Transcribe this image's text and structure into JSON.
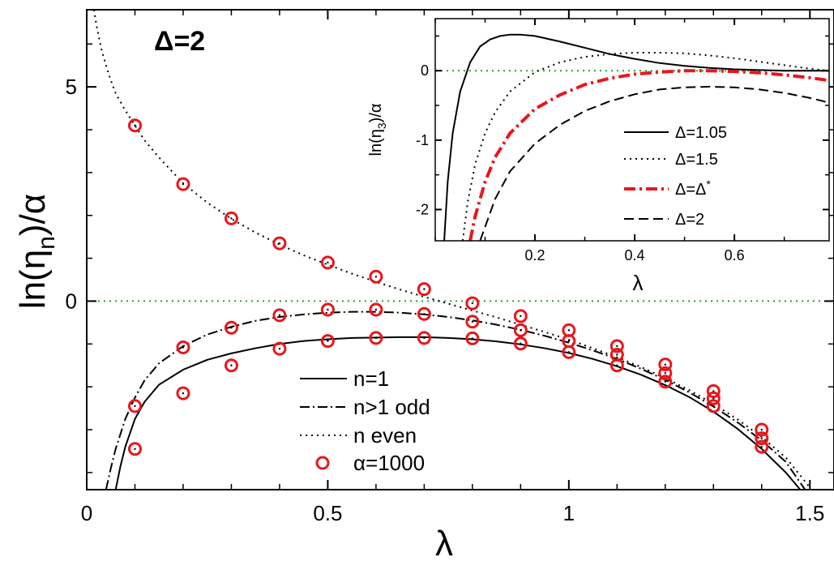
{
  "chart_data": [
    {
      "type": "line",
      "annotation": "Δ=2",
      "xlabel_main": "λ",
      "ylabel_main": "ln(η",
      "ylabel_sub": "n",
      "ylabel_tail": ")/α",
      "xlim": [
        0,
        1.55
      ],
      "ylim": [
        -4.4,
        6.8
      ],
      "xticks": [
        0,
        0.5,
        1,
        1.5
      ],
      "xtick_labels": [
        "0",
        "0.5",
        "1",
        "1.5"
      ],
      "yticks": [
        0,
        5
      ],
      "ytick_labels": [
        "0",
        "5"
      ],
      "zero_line_color": "#2ca02c",
      "marker_color": "#e8161b",
      "series": [
        {
          "name": "n=1",
          "style": "solid",
          "x": [
            0.06,
            0.07,
            0.08,
            0.1,
            0.12,
            0.15,
            0.2,
            0.25,
            0.3,
            0.35,
            0.4,
            0.45,
            0.5,
            0.55,
            0.6,
            0.65,
            0.7,
            0.75,
            0.8,
            0.85,
            0.9,
            0.95,
            1.0,
            1.05,
            1.1,
            1.15,
            1.2,
            1.25,
            1.3,
            1.35,
            1.4,
            1.45,
            1.48
          ],
          "y": [
            -4.4,
            -3.85,
            -3.4,
            -2.75,
            -2.35,
            -1.95,
            -1.6,
            -1.37,
            -1.22,
            -1.1,
            -1.0,
            -0.93,
            -0.89,
            -0.86,
            -0.85,
            -0.84,
            -0.84,
            -0.86,
            -0.89,
            -0.94,
            -1.01,
            -1.1,
            -1.21,
            -1.35,
            -1.52,
            -1.72,
            -1.96,
            -2.24,
            -2.58,
            -2.98,
            -3.45,
            -4.0,
            -4.4
          ]
        },
        {
          "name": "n>1 odd",
          "style": "dashdot",
          "x": [
            0.04,
            0.05,
            0.06,
            0.08,
            0.1,
            0.12,
            0.15,
            0.2,
            0.25,
            0.3,
            0.35,
            0.4,
            0.45,
            0.5,
            0.55,
            0.6,
            0.65,
            0.7,
            0.75,
            0.8,
            0.85,
            0.9,
            0.95,
            1.0,
            1.05,
            1.1,
            1.15,
            1.2,
            1.25,
            1.3,
            1.35,
            1.4,
            1.45,
            1.49
          ],
          "y": [
            -4.4,
            -3.9,
            -3.45,
            -2.75,
            -2.25,
            -1.85,
            -1.45,
            -1.05,
            -0.78,
            -0.6,
            -0.46,
            -0.37,
            -0.31,
            -0.27,
            -0.25,
            -0.25,
            -0.27,
            -0.31,
            -0.37,
            -0.45,
            -0.55,
            -0.67,
            -0.81,
            -0.97,
            -1.15,
            -1.35,
            -1.58,
            -1.84,
            -2.13,
            -2.46,
            -2.83,
            -3.25,
            -3.75,
            -4.4
          ]
        },
        {
          "name": "n even",
          "style": "dotted",
          "x": [
            0.015,
            0.02,
            0.03,
            0.04,
            0.05,
            0.06,
            0.08,
            0.1,
            0.12,
            0.15,
            0.2,
            0.25,
            0.3,
            0.35,
            0.4,
            0.45,
            0.5,
            0.55,
            0.6,
            0.65,
            0.7,
            0.75,
            0.8,
            0.85,
            0.9,
            0.95,
            1.0,
            1.05,
            1.1,
            1.15,
            1.2,
            1.25,
            1.3,
            1.35,
            1.4,
            1.45,
            1.5
          ],
          "y": [
            6.8,
            6.45,
            5.9,
            5.5,
            5.15,
            4.85,
            4.45,
            4.1,
            3.75,
            3.35,
            2.75,
            2.3,
            1.92,
            1.6,
            1.32,
            1.07,
            0.85,
            0.64,
            0.45,
            0.27,
            0.1,
            -0.06,
            -0.22,
            -0.38,
            -0.55,
            -0.72,
            -0.9,
            -1.1,
            -1.31,
            -1.54,
            -1.8,
            -2.08,
            -2.4,
            -2.76,
            -3.17,
            -3.65,
            -4.35
          ]
        },
        {
          "name": "α=1000",
          "style": "markers",
          "x": [
            0.1,
            0.1,
            0.1,
            0.2,
            0.2,
            0.2,
            0.3,
            0.3,
            0.3,
            0.4,
            0.4,
            0.4,
            0.5,
            0.5,
            0.5,
            0.6,
            0.6,
            0.6,
            0.7,
            0.7,
            0.7,
            0.8,
            0.8,
            0.8,
            0.9,
            0.9,
            0.9,
            1.0,
            1.0,
            1.0,
            1.1,
            1.1,
            1.1,
            1.2,
            1.2,
            1.2,
            1.3,
            1.3,
            1.3,
            1.4,
            1.4,
            1.4
          ],
          "y": [
            4.1,
            -2.45,
            -3.45,
            2.73,
            -1.08,
            -2.15,
            1.93,
            -0.62,
            -1.5,
            1.35,
            -0.33,
            -1.11,
            0.9,
            -0.2,
            -0.93,
            0.57,
            -0.2,
            -0.86,
            0.28,
            -0.3,
            -0.86,
            -0.05,
            -0.48,
            -0.87,
            -0.35,
            -0.68,
            -0.99,
            -0.68,
            -0.93,
            -1.19,
            -1.05,
            -1.25,
            -1.5,
            -1.48,
            -1.68,
            -1.88,
            -2.1,
            -2.27,
            -2.45,
            -3.0,
            -3.2,
            -3.4
          ]
        }
      ]
    },
    {
      "type": "line",
      "inset": true,
      "xlabel": "λ",
      "ylabel_main": "ln(η",
      "ylabel_sub": "3",
      "ylabel_tail": ")/α",
      "xlim": [
        0,
        0.79
      ],
      "ylim": [
        -2.45,
        0.75
      ],
      "xticks": [
        0.2,
        0.4,
        0.6
      ],
      "xtick_labels": [
        "0.2",
        "0.4",
        "0.6"
      ],
      "yticks": [
        0,
        -1,
        -2
      ],
      "ytick_labels": [
        "0",
        "-1",
        "-2"
      ],
      "series": [
        {
          "name": "Δ=1.05",
          "color": "#000000",
          "style": "solid",
          "x": [
            0.018,
            0.025,
            0.035,
            0.05,
            0.07,
            0.09,
            0.11,
            0.13,
            0.15,
            0.17,
            0.2,
            0.25,
            0.3,
            0.35,
            0.4,
            0.45,
            0.5,
            0.55,
            0.6,
            0.65,
            0.7,
            0.75,
            0.79
          ],
          "y": [
            -2.45,
            -1.6,
            -0.9,
            -0.3,
            0.12,
            0.35,
            0.45,
            0.5,
            0.52,
            0.52,
            0.5,
            0.42,
            0.33,
            0.24,
            0.17,
            0.11,
            0.07,
            0.04,
            0.02,
            0.01,
            0.0,
            0.0,
            0.0
          ]
        },
        {
          "name": "Δ=1.5",
          "color": "#000000",
          "style": "dotted",
          "x": [
            0.055,
            0.065,
            0.08,
            0.1,
            0.12,
            0.15,
            0.2,
            0.25,
            0.3,
            0.35,
            0.4,
            0.45,
            0.5,
            0.55,
            0.6,
            0.65,
            0.7,
            0.75,
            0.79
          ],
          "y": [
            -2.45,
            -1.9,
            -1.35,
            -0.9,
            -0.6,
            -0.3,
            -0.02,
            0.12,
            0.2,
            0.24,
            0.26,
            0.26,
            0.25,
            0.22,
            0.18,
            0.13,
            0.08,
            0.03,
            0.0
          ]
        },
        {
          "name": "Δ=Δ*",
          "color": "#e8161b",
          "style": "dashdot",
          "x": [
            0.07,
            0.08,
            0.1,
            0.12,
            0.15,
            0.2,
            0.25,
            0.3,
            0.35,
            0.4,
            0.45,
            0.5,
            0.55,
            0.6,
            0.65,
            0.7,
            0.75,
            0.79
          ],
          "y": [
            -2.45,
            -2.1,
            -1.6,
            -1.25,
            -0.9,
            -0.55,
            -0.35,
            -0.2,
            -0.11,
            -0.05,
            -0.02,
            0.0,
            0.0,
            -0.01,
            -0.03,
            -0.06,
            -0.1,
            -0.14
          ]
        },
        {
          "name": "Δ=2",
          "color": "#000000",
          "style": "dashed",
          "x": [
            0.09,
            0.1,
            0.12,
            0.15,
            0.2,
            0.25,
            0.3,
            0.35,
            0.4,
            0.45,
            0.5,
            0.55,
            0.6,
            0.65,
            0.7,
            0.75,
            0.79
          ],
          "y": [
            -2.45,
            -2.25,
            -1.85,
            -1.45,
            -1.05,
            -0.78,
            -0.58,
            -0.44,
            -0.34,
            -0.27,
            -0.24,
            -0.23,
            -0.24,
            -0.27,
            -0.32,
            -0.39,
            -0.46
          ]
        }
      ]
    }
  ]
}
